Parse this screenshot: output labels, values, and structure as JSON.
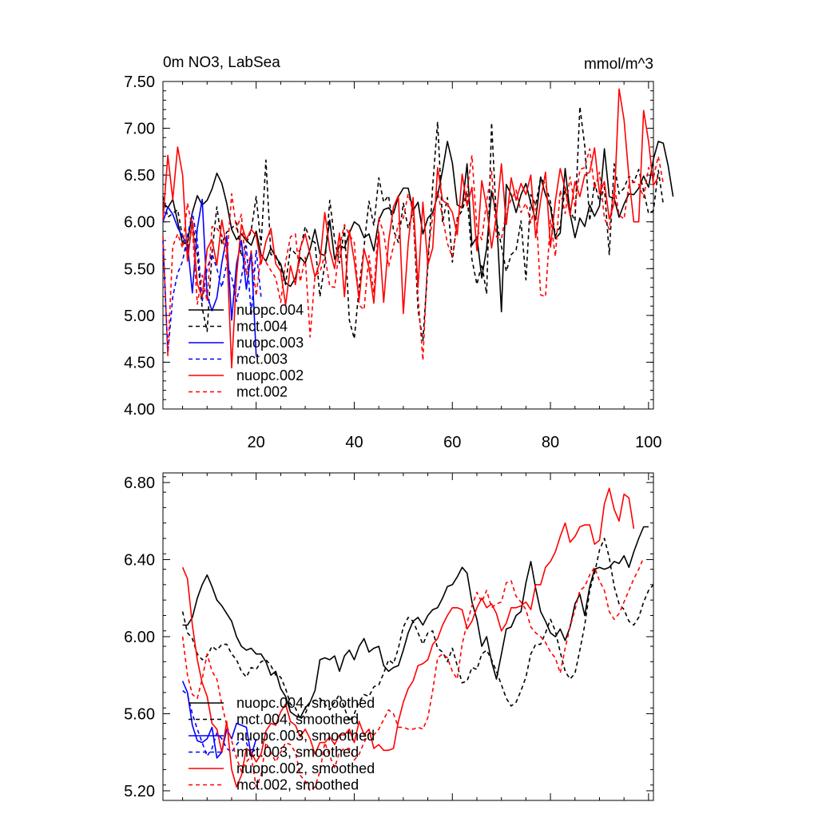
{
  "chart_data": [
    {
      "type": "line",
      "title": "0m NO3, LabSea",
      "units": "mmol/m^3",
      "xlabel": "",
      "ylabel": "",
      "xlim": [
        1,
        101
      ],
      "ylim": [
        4.0,
        7.5
      ],
      "x_ticks": [
        20,
        40,
        60,
        80,
        100
      ],
      "y_ticks": [
        "4.00",
        "4.50",
        "5.00",
        "5.50",
        "6.00",
        "6.50",
        "7.00",
        "7.50"
      ],
      "y_tick_values": [
        4.0,
        4.5,
        5.0,
        5.5,
        6.0,
        6.5,
        7.0,
        7.5
      ],
      "legend_position": "bottom-left",
      "series": [
        {
          "name": "nuopc.004",
          "color": "#000000",
          "dash": "solid",
          "x_start": 1,
          "values": [
            6.21,
            6.15,
            6.24,
            6.0,
            5.77,
            5.78,
            6.1,
            6.28,
            6.18,
            6.23,
            6.35,
            6.52,
            6.41,
            6.2,
            5.92,
            5.81,
            5.87,
            5.8,
            5.75,
            5.9,
            5.65,
            5.58,
            5.72,
            5.62,
            5.55,
            5.35,
            5.31,
            5.4,
            5.62,
            5.56,
            5.71,
            5.92,
            5.66,
            5.64,
            6.02,
            5.6,
            5.75,
            5.72,
            5.88,
            6.0,
            5.96,
            5.83,
            5.87,
            5.69,
            6.02,
            6.13,
            6.15,
            6.09,
            6.27,
            6.36,
            6.36,
            6.12,
            6.21,
            5.87,
            6.04,
            6.1,
            6.28,
            6.55,
            6.86,
            6.63,
            6.18,
            6.15,
            6.62,
            5.75,
            5.84,
            5.4,
            5.72,
            6.33,
            6.07,
            5.04,
            6.4,
            6.29,
            6.1,
            6.29,
            6.41,
            6.2,
            6.02,
            6.48,
            6.29,
            6.16,
            5.82,
            5.88,
            6.57,
            6.09,
            5.83,
            6.04,
            5.95,
            6.18,
            6.06,
            6.17,
            6.78,
            6.27,
            6.25,
            6.05,
            6.19,
            6.3,
            6.29,
            6.36,
            6.49,
            6.37,
            6.67,
            6.86,
            6.84,
            6.6,
            6.27
          ]
        },
        {
          "name": "mct.004",
          "color": "#000000",
          "dash": "dashed",
          "x_start": 1,
          "values": [
            6.27,
            6.05,
            6.09,
            6.13,
            5.83,
            5.65,
            6.0,
            5.66,
            5.08,
            4.83,
            5.67,
            6.16,
            5.77,
            5.89,
            5.93,
            5.99,
            5.63,
            5.77,
            5.91,
            6.27,
            5.75,
            6.66,
            5.65,
            5.64,
            5.51,
            5.33,
            5.72,
            5.66,
            5.7,
            5.95,
            5.81,
            5.78,
            5.2,
            5.55,
            6.23,
            5.81,
            5.56,
            5.94,
            4.95,
            4.75,
            5.3,
            5.73,
            6.22,
            5.96,
            6.47,
            6.21,
            6.28,
            5.91,
            5.78,
            6.2,
            5.93,
            6.11,
            5.06,
            4.73,
            5.53,
            6.39,
            7.07,
            5.99,
            6.26,
            5.57,
            6.04,
            6.12,
            6.3,
            5.6,
            5.33,
            5.55,
            5.23,
            7.06,
            6.01,
            5.74,
            5.47,
            5.65,
            5.7,
            6.01,
            5.38,
            6.29,
            6.18,
            6.47,
            6.4,
            6.21,
            5.85,
            5.95,
            6.37,
            6.12,
            6.01,
            7.23,
            6.81,
            6.01,
            6.42,
            6.21,
            6.37,
            5.65,
            6.62,
            6.3,
            6.36,
            6.49,
            6.42,
            6.56,
            6.33,
            6.09,
            6.12,
            6.55,
            6.19
          ]
        },
        {
          "name": "nuopc.003",
          "color": "#0000ff",
          "dash": "solid",
          "x_start": 1,
          "values": [
            6.0,
            6.16,
            6.08,
            5.94,
            5.84,
            5.76,
            5.24,
            5.93,
            6.24,
            5.21,
            5.05,
            5.19,
            5.56,
            5.85,
            4.95,
            5.55,
            5.8,
            5.28,
            5.68,
            4.57
          ]
        },
        {
          "name": "mct.003",
          "color": "#0000ff",
          "dash": "dashed",
          "x_start": 1,
          "values": [
            5.8,
            4.6,
            5.2,
            5.45,
            5.58,
            5.85,
            6.1,
            5.8,
            5.15,
            5.5,
            5.66,
            5.5,
            5.3,
            5.55,
            5.41,
            5.15,
            5.4,
            5.74,
            5.0,
            5.7,
            5.2
          ]
        },
        {
          "name": "nuopc.002",
          "color": "#ff0000",
          "dash": "solid",
          "x_start": 1,
          "values": [
            6.02,
            6.71,
            6.24,
            6.8,
            6.5,
            5.58,
            6.01,
            5.34,
            5.19,
            5.71,
            5.81,
            5.54,
            6.02,
            5.72,
            4.44,
            5.42,
            5.97,
            5.81,
            5.92,
            5.85,
            5.55,
            5.79,
            5.93,
            5.55,
            5.47,
            5.11,
            5.53,
            5.33,
            5.72,
            5.87,
            5.65,
            5.41,
            5.57,
            6.1,
            5.7,
            5.5,
            5.88,
            5.2,
            5.91,
            5.58,
            5.17,
            5.71,
            5.51,
            5.13,
            5.89,
            5.14,
            5.79,
            6.16,
            6.28,
            5.02,
            5.77,
            6.26,
            5.3,
            6.21,
            5.54,
            5.72,
            6.58,
            6.23,
            6.19,
            6.1,
            5.86,
            6.51,
            6.17,
            6.37,
            5.69,
            6.44,
            6.16,
            5.72,
            6.07,
            6.62,
            5.97,
            6.47,
            6.23,
            6.41,
            6.29,
            6.5,
            5.83,
            6.23,
            6.53,
            5.73,
            6.22,
            6.57,
            6.35,
            6.07,
            6.43,
            6.27,
            6.5,
            6.53,
            6.79,
            6.3,
            6.43,
            6.03,
            6.2,
            7.42,
            7.09,
            6.48,
            6.0,
            6.0,
            7.19,
            6.86,
            6.39,
            6.48
          ]
        },
        {
          "name": "mct.002",
          "color": "#ff0000",
          "dash": "dashed",
          "x_start": 1,
          "values": [
            5.84,
            4.57,
            5.74,
            5.87,
            5.72,
            6.2,
            5.93,
            5.12,
            5.43,
            5.15,
            5.95,
            5.93,
            5.86,
            5.58,
            6.3,
            5.92,
            6.08,
            5.43,
            5.69,
            5.21,
            5.66,
            5.57,
            5.48,
            5.4,
            5.14,
            5.57,
            5.84,
            5.87,
            5.36,
            5.62,
            4.77,
            5.43,
            5.46,
            5.65,
            5.31,
            5.3,
            5.73,
            5.97,
            5.86,
            5.78,
            5.11,
            5.06,
            5.64,
            5.24,
            6.04,
            5.88,
            5.52,
            5.74,
            5.98,
            6.04,
            6.3,
            6.11,
            5.21,
            4.52,
            5.66,
            6.06,
            6.33,
            6.05,
            5.77,
            5.62,
            6.02,
            6.18,
            6.33,
            6.71,
            5.93,
            5.81,
            6.22,
            6.54,
            5.84,
            5.82,
            6.1,
            6.24,
            6.34,
            6.1,
            6.2,
            5.99,
            6.2,
            5.22,
            5.2,
            6.02,
            5.63,
            6.34,
            6.09,
            6.48,
            6.16,
            6.56,
            6.58,
            6.78,
            6.35,
            6.53,
            6.04,
            5.92,
            6.39,
            6.07,
            6.03,
            6.39,
            6.43,
            6.4,
            6.26,
            6.58,
            6.47,
            6.7,
            6.41
          ]
        }
      ]
    },
    {
      "type": "line",
      "title": "",
      "xlabel": "",
      "ylabel": "",
      "xlim": [
        1,
        101
      ],
      "ylim": [
        5.15,
        6.85
      ],
      "x_ticks": [
        20,
        40,
        60,
        80,
        100
      ],
      "x_tick_labels_shown": false,
      "y_ticks": [
        "5.20",
        "5.60",
        "6.00",
        "6.40",
        "6.80"
      ],
      "y_tick_values": [
        5.2,
        5.6,
        6.0,
        6.4,
        6.8
      ],
      "legend_position": "bottom-left",
      "series": [
        {
          "name": "nuopc.004, smoothed",
          "color": "#000000",
          "dash": "solid",
          "x_start": 5,
          "values": [
            6.06,
            6.06,
            6.1,
            6.2,
            6.27,
            6.32,
            6.26,
            6.19,
            6.16,
            6.12,
            6.08,
            6.0,
            5.95,
            5.93,
            5.94,
            5.91,
            5.91,
            5.87,
            5.8,
            5.82,
            5.73,
            5.69,
            5.61,
            5.59,
            5.58,
            5.63,
            5.66,
            5.72,
            5.88,
            5.89,
            5.88,
            5.9,
            5.82,
            5.9,
            5.93,
            5.88,
            5.95,
            5.99,
            5.92,
            5.94,
            5.95,
            5.85,
            5.82,
            5.84,
            5.85,
            5.93,
            6.02,
            6.08,
            6.1,
            6.06,
            6.11,
            6.14,
            6.15,
            6.2,
            6.26,
            6.27,
            6.31,
            6.36,
            6.33,
            6.18,
            6.09,
            5.95,
            6.0,
            5.87,
            5.78,
            5.91,
            6.04,
            6.05,
            6.11,
            6.13,
            6.28,
            6.39,
            6.25,
            6.13,
            6.08,
            6.02,
            6.0,
            6.04,
            5.98,
            6.05,
            6.17,
            6.22,
            6.11,
            6.26,
            6.35,
            6.36,
            6.35,
            6.36,
            6.39,
            6.38,
            6.42,
            6.36,
            6.44,
            6.51,
            6.57,
            6.57
          ]
        },
        {
          "name": "mct.004, smoothed",
          "color": "#000000",
          "dash": "dashed",
          "x_start": 5,
          "values": [
            6.13,
            6.02,
            5.99,
            5.91,
            5.88,
            5.9,
            5.95,
            5.93,
            5.96,
            5.96,
            5.91,
            5.88,
            5.82,
            5.79,
            5.84,
            5.83,
            5.87,
            5.88,
            5.85,
            5.8,
            5.79,
            5.73,
            5.65,
            5.63,
            5.57,
            5.6,
            5.66,
            5.67,
            5.68,
            5.65,
            5.62,
            5.66,
            5.7,
            5.63,
            5.56,
            5.6,
            5.66,
            5.7,
            5.69,
            5.74,
            5.75,
            5.81,
            5.88,
            5.86,
            5.94,
            6.05,
            6.1,
            6.08,
            6.02,
            5.96,
            6.02,
            6.03,
            5.94,
            5.92,
            5.87,
            5.94,
            5.85,
            5.76,
            5.77,
            5.84,
            5.83,
            5.91,
            5.93,
            5.88,
            5.82,
            5.75,
            5.68,
            5.64,
            5.66,
            5.72,
            5.79,
            5.91,
            5.96,
            5.96,
            6.02,
            6.09,
            6.03,
            5.92,
            5.82,
            5.78,
            5.81,
            5.93,
            6.06,
            6.24,
            6.33,
            6.45,
            6.51,
            6.41,
            6.26,
            6.17,
            6.14,
            6.08,
            6.06,
            6.1,
            6.18,
            6.24,
            6.27
          ]
        },
        {
          "name": "nuopc.003, smoothed",
          "color": "#0000ff",
          "dash": "solid",
          "x_start": 5,
          "values": [
            5.77,
            5.71,
            5.54,
            5.46,
            5.45,
            5.47,
            5.53,
            5.37,
            5.4,
            5.52,
            5.47,
            5.55,
            5.54,
            5.53,
            5.38,
            5.47
          ]
        },
        {
          "name": "mct.003, smoothed",
          "color": "#0000ff",
          "dash": "dashed",
          "x_start": 5,
          "values": [
            5.72,
            5.7,
            5.6,
            5.52,
            5.45,
            5.38,
            5.42,
            5.5,
            5.47,
            5.42,
            5.4,
            5.44,
            5.47,
            5.45,
            5.39,
            5.43
          ]
        },
        {
          "name": "nuopc.002, smoothed",
          "color": "#ff0000",
          "dash": "solid",
          "x_start": 5,
          "values": [
            6.36,
            6.3,
            6.06,
            5.88,
            5.76,
            5.69,
            5.55,
            5.52,
            5.4,
            5.56,
            5.31,
            5.22,
            5.28,
            5.42,
            5.4,
            5.35,
            5.39,
            5.51,
            5.55,
            5.54,
            5.61,
            5.65,
            5.56,
            5.54,
            5.48,
            5.52,
            5.47,
            5.39,
            5.45,
            5.45,
            5.48,
            5.44,
            5.49,
            5.49,
            5.52,
            5.45,
            5.56,
            5.49,
            5.52,
            5.42,
            5.44,
            5.41,
            5.41,
            5.42,
            5.56,
            5.66,
            5.73,
            5.77,
            5.85,
            5.86,
            5.88,
            5.96,
            5.99,
            6.06,
            6.11,
            6.15,
            6.15,
            6.14,
            6.04,
            6.08,
            6.15,
            6.2,
            6.15,
            6.17,
            6.12,
            6.03,
            6.07,
            6.15,
            6.15,
            6.16,
            6.18,
            6.14,
            6.27,
            6.27,
            6.36,
            6.39,
            6.44,
            6.52,
            6.59,
            6.49,
            6.52,
            6.57,
            6.58,
            6.58,
            6.48,
            6.5,
            6.69,
            6.77,
            6.66,
            6.6,
            6.74,
            6.72,
            6.56
          ]
        },
        {
          "name": "mct.002, smoothed",
          "color": "#ff0000",
          "dash": "dashed",
          "x_start": 5,
          "values": [
            6.0,
            5.8,
            5.7,
            5.68,
            5.78,
            5.91,
            5.82,
            5.78,
            5.65,
            5.54,
            5.46,
            5.37,
            5.3,
            5.35,
            5.38,
            5.22,
            5.28,
            5.45,
            5.4,
            5.35,
            5.4,
            5.45,
            5.44,
            5.4,
            5.28,
            5.25,
            5.2,
            5.22,
            5.3,
            5.45,
            5.38,
            5.32,
            5.4,
            5.42,
            5.42,
            5.36,
            5.39,
            5.45,
            5.5,
            5.49,
            5.52,
            5.57,
            5.62,
            5.6,
            5.53,
            5.53,
            5.52,
            5.52,
            5.53,
            5.52,
            5.58,
            5.72,
            5.89,
            5.91,
            5.89,
            5.82,
            5.78,
            5.96,
            6.07,
            6.16,
            6.23,
            6.18,
            6.24,
            6.15,
            6.17,
            6.18,
            6.28,
            6.29,
            6.21,
            6.18,
            6.14,
            6.05,
            6.02,
            6.0,
            5.97,
            5.92,
            5.89,
            5.81,
            5.94,
            6.05,
            6.14,
            6.24,
            6.26,
            6.32,
            6.36,
            6.29,
            6.24,
            6.13,
            6.09,
            6.12,
            6.18,
            6.24,
            6.3,
            6.35,
            6.41
          ]
        }
      ]
    }
  ]
}
